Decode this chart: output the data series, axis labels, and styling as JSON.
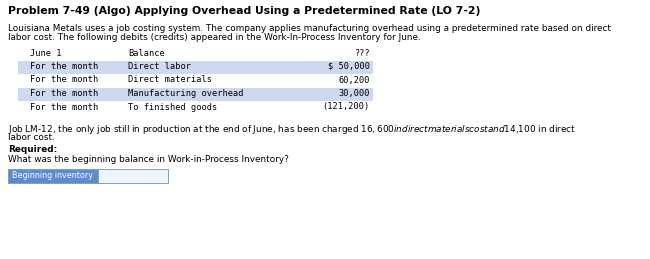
{
  "title": "Problem 7-49 (Algo) Applying Overhead Using a Predetermined Rate (LO 7-2)",
  "intro_line1": "Louisiana Metals uses a job costing system. The company applies manufacturing overhead using a predetermined rate based on direct",
  "intro_line2": "labor cost. The following debits (credits) appeared in the Work-In-Process Inventory for June.",
  "table_rows": [
    [
      "June 1",
      "Balance",
      "???"
    ],
    [
      "For the month",
      "Direct labor",
      "$ 50,000"
    ],
    [
      "For the month",
      "Direct materials",
      "60,200"
    ],
    [
      "For the month",
      "Manufacturing overhead",
      "30,000"
    ],
    [
      "For the month",
      "To finished goods",
      "(121,200)"
    ]
  ],
  "table_shading": [
    false,
    true,
    false,
    true,
    false
  ],
  "job_line1": "Job LM-12, the only job still in production at the end of June, has been charged $16,600 in direct materials cost and $14,100 in direct",
  "job_line2": "labor cost.",
  "required_label": "Required:",
  "required_question": "What was the beginning balance in Work-in-Process Inventory?",
  "answer_label": "Beginning inventory",
  "bg_color": "#ffffff",
  "title_color": "#000000",
  "body_color": "#000000",
  "shade_color": "#cdd9f0",
  "label_bg": "#5b8bd0",
  "label_fg": "#ffffff",
  "input_box_color": "#f0f4fb",
  "input_border": "#7a9fd4",
  "title_fontsize": 7.8,
  "body_fontsize": 6.4,
  "table_fontsize": 6.2
}
